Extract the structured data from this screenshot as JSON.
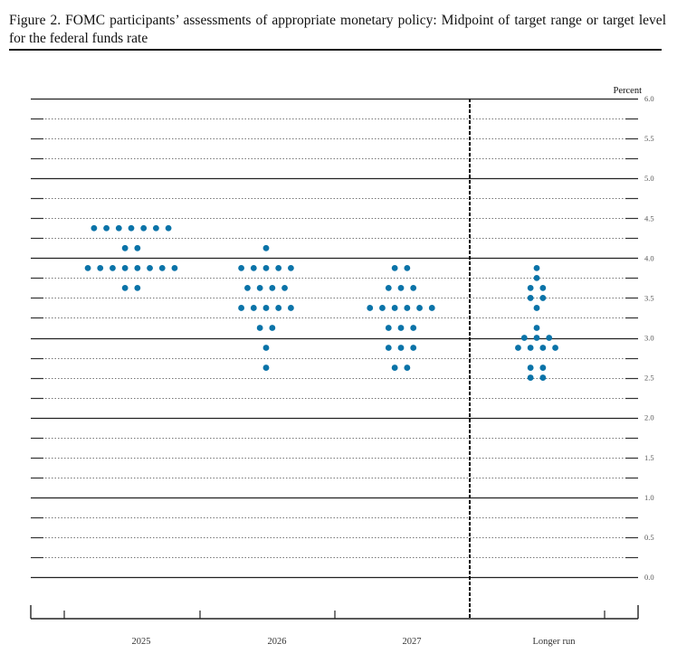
{
  "figure": {
    "title": "Figure 2.  FOMC participants’ assessments of appropriate monetary policy:  Midpoint of target range or target level for the federal funds rate"
  },
  "chart_data": {
    "type": "scatter",
    "subtype": "dot plot",
    "title": "FOMC participants’ assessments of appropriate monetary policy: Midpoint of target range or target level for the federal funds rate",
    "xlabel": "",
    "ylabel": "Percent",
    "ylim": [
      0.0,
      6.0
    ],
    "y_ticks": [
      "0.0",
      "0.5",
      "1.0",
      "1.5",
      "2.0",
      "2.5",
      "3.0",
      "3.5",
      "4.0",
      "4.5",
      "5.0",
      "5.5",
      "6.0"
    ],
    "categories": [
      "2025",
      "2026",
      "2027",
      "Longer run"
    ],
    "grid": true,
    "dot_color": "#0a73a8",
    "series": [
      {
        "name": "2025",
        "points": [
          {
            "value": 4.375,
            "count": 7
          },
          {
            "value": 4.125,
            "count": 2
          },
          {
            "value": 3.875,
            "count": 8
          },
          {
            "value": 3.625,
            "count": 2
          }
        ]
      },
      {
        "name": "2026",
        "points": [
          {
            "value": 4.125,
            "count": 1
          },
          {
            "value": 3.875,
            "count": 5
          },
          {
            "value": 3.625,
            "count": 4
          },
          {
            "value": 3.375,
            "count": 5
          },
          {
            "value": 3.125,
            "count": 2
          },
          {
            "value": 2.875,
            "count": 1
          },
          {
            "value": 2.625,
            "count": 1
          }
        ]
      },
      {
        "name": "2027",
        "points": [
          {
            "value": 3.875,
            "count": 2
          },
          {
            "value": 3.625,
            "count": 3
          },
          {
            "value": 3.375,
            "count": 6
          },
          {
            "value": 3.125,
            "count": 3
          },
          {
            "value": 2.875,
            "count": 3
          },
          {
            "value": 2.625,
            "count": 2
          }
        ]
      },
      {
        "name": "Longer run",
        "points": [
          {
            "value": 3.875,
            "count": 1
          },
          {
            "value": 3.75,
            "count": 1
          },
          {
            "value": 3.625,
            "count": 2
          },
          {
            "value": 3.5,
            "count": 2
          },
          {
            "value": 3.375,
            "count": 1
          },
          {
            "value": 3.125,
            "count": 1
          },
          {
            "value": 3.0,
            "count": 3
          },
          {
            "value": 2.875,
            "count": 4
          },
          {
            "value": 2.625,
            "count": 2
          },
          {
            "value": 2.5,
            "count": 2
          }
        ]
      }
    ]
  }
}
